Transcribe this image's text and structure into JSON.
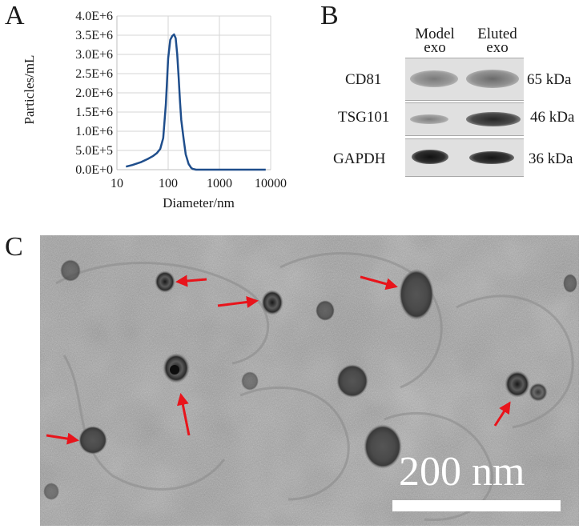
{
  "panels": {
    "a": "A",
    "b": "B",
    "c": "C"
  },
  "chart_data": {
    "type": "line",
    "xlabel": "Diameter/nm",
    "ylabel": "Particles/mL",
    "xscale": "log",
    "xlim": [
      10,
      10000
    ],
    "ylim": [
      0,
      4000000
    ],
    "grid": true,
    "xticks": [
      "10",
      "100",
      "1000",
      "10000"
    ],
    "yticks": [
      "0.0E+0",
      "5.0E+5",
      "1.0E+6",
      "1.5E+6",
      "2.0E+6",
      "2.5E+6",
      "3.0E+6",
      "3.5E+6",
      "4.0E+6"
    ],
    "series": [
      {
        "color": "#1f4e8c",
        "x": [
          15,
          20,
          30,
          40,
          50,
          60,
          70,
          80,
          90,
          100,
          110,
          120,
          130,
          140,
          150,
          160,
          170,
          180,
          200,
          220,
          250,
          280,
          300,
          350,
          400,
          500,
          700,
          1000,
          2000,
          5000,
          8000
        ],
        "y": [
          80000,
          120000,
          200000,
          280000,
          350000,
          430000,
          540000,
          820000,
          1700000,
          2900000,
          3380000,
          3480000,
          3520000,
          3420000,
          3000000,
          2400000,
          1800000,
          1300000,
          800000,
          400000,
          150000,
          50000,
          20000,
          0,
          0,
          0,
          0,
          0,
          0,
          0,
          0
        ]
      }
    ]
  },
  "blot": {
    "columns": [
      {
        "line1": "Model",
        "line2": "exo"
      },
      {
        "line1": "Eluted",
        "line2": "exo"
      }
    ],
    "rows": [
      {
        "protein": "CD81",
        "size": "65 kDa"
      },
      {
        "protein": "TSG101",
        "size": "46 kDa"
      },
      {
        "protein": "GAPDH",
        "size": "36 kDa"
      }
    ]
  },
  "tem": {
    "scale_label": "200 nm",
    "arrow_color": "#e8141b"
  }
}
